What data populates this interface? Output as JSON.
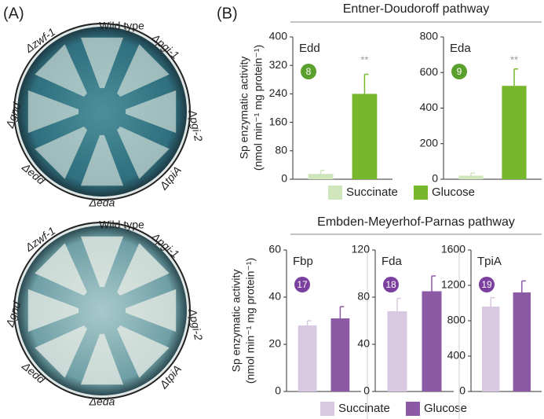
{
  "panel_a": {
    "label": "(A)",
    "plates": [
      {
        "labels": [
          "Wild type",
          "Δzwf-1",
          "Δpgi-1",
          "Δgnd",
          "Δpgi-2",
          "Δedd",
          "ΔtpiA",
          "Δeda"
        ]
      },
      {
        "labels": [
          "Wild type",
          "Δzwf-1",
          "Δpgi-1",
          "Δgnd",
          "Δpgi-2",
          "Δedd",
          "ΔtpiA",
          "Δeda"
        ]
      }
    ]
  },
  "panel_b_label": "(B)",
  "rows": [
    {
      "title": "Entner-Doudoroff pathway",
      "ylabel": [
        "Sp enzymatic activity",
        "(nmol min⁻¹ mg protein⁻¹)"
      ],
      "legend": [
        {
          "name": "Succinate",
          "color": "#cfe6bd"
        },
        {
          "name": "Glucose",
          "color": "#77b72c"
        }
      ]
    },
    {
      "title": "Embden-Meyerhof-Parnas pathway",
      "ylabel": [
        "Sp enzymatic activity",
        "(nmol min⁻¹ mg protein⁻¹)"
      ],
      "legend": [
        {
          "name": "Succinate",
          "color": "#d8c8e2"
        },
        {
          "name": "Glucose",
          "color": "#8c5aa5"
        }
      ]
    }
  ],
  "chart_data": [
    {
      "type": "bar",
      "label": "Edd",
      "badge": "8",
      "badge_color": "#5aa02c",
      "values": [
        15,
        240
      ],
      "errors": [
        10,
        55
      ],
      "colors": [
        "#cfe6bd",
        "#77b72c"
      ],
      "significance": "**",
      "ylim": [
        0,
        400
      ],
      "yticks": [
        0,
        80,
        160,
        240,
        320,
        400
      ]
    },
    {
      "type": "bar",
      "label": "Eda",
      "badge": "9",
      "badge_color": "#5aa02c",
      "values": [
        20,
        525
      ],
      "errors": [
        15,
        95
      ],
      "colors": [
        "#cfe6bd",
        "#77b72c"
      ],
      "significance": "**",
      "ylim": [
        0,
        800
      ],
      "yticks": [
        0,
        200,
        400,
        600,
        800
      ]
    },
    {
      "type": "bar",
      "label": "Fbp",
      "badge": "17",
      "badge_color": "#7b3fa0",
      "values": [
        28,
        31
      ],
      "errors": [
        2,
        5
      ],
      "colors": [
        "#d8c8e2",
        "#8c5aa5"
      ],
      "ylim": [
        0,
        60
      ],
      "yticks": [
        0,
        20,
        40,
        60
      ]
    },
    {
      "type": "bar",
      "label": "Fda",
      "badge": "18",
      "badge_color": "#7b3fa0",
      "values": [
        68,
        85
      ],
      "errors": [
        11,
        13
      ],
      "colors": [
        "#d8c8e2",
        "#8c5aa5"
      ],
      "ylim": [
        0,
        120
      ],
      "yticks": [
        0,
        40,
        80,
        120
      ]
    },
    {
      "type": "bar",
      "label": "TpiA",
      "badge": "19",
      "badge_color": "#7b3fa0",
      "values": [
        960,
        1120
      ],
      "errors": [
        100,
        130
      ],
      "colors": [
        "#d8c8e2",
        "#8c5aa5"
      ],
      "ylim": [
        0,
        1600
      ],
      "yticks": [
        0,
        400,
        800,
        1200,
        1600
      ]
    }
  ]
}
